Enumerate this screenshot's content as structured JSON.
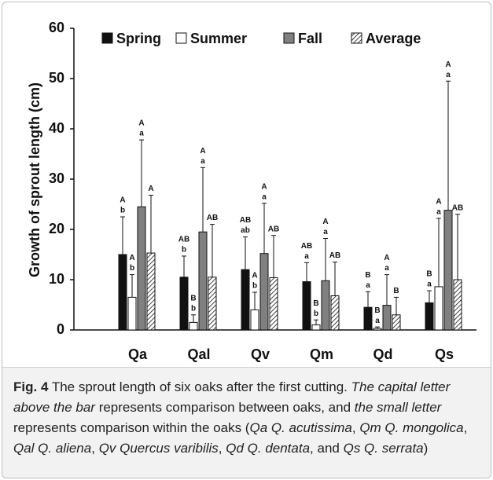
{
  "chart_data": {
    "type": "bar",
    "categories": [
      "Qa",
      "Qal",
      "Qv",
      "Qm",
      "Qd",
      "Qs"
    ],
    "ylabel": "Growth of sprout length (cm)",
    "ylim": [
      0,
      60
    ],
    "yticks": [
      0,
      10,
      20,
      30,
      40,
      50,
      60
    ],
    "legend": "top",
    "series": [
      {
        "name": "Spring",
        "color": "#111111",
        "values": [
          15,
          10.5,
          12,
          9.6,
          4.5,
          5.4
        ],
        "errors": [
          7.5,
          4.2,
          6.5,
          3.8,
          3.1,
          2.4
        ],
        "upper": [
          "A",
          "AB",
          "AB",
          "AB",
          "B",
          "B"
        ],
        "lower": [
          "b",
          "b",
          "ab",
          "a",
          "a",
          "a"
        ]
      },
      {
        "name": "Summer",
        "color": "#ffffff",
        "values": [
          6.5,
          1.5,
          4,
          1,
          0.3,
          8.6
        ],
        "errors": [
          4.5,
          1.5,
          3.5,
          1,
          0.3,
          13.6
        ],
        "upper": [
          "A",
          "B",
          "A",
          "B",
          "B",
          "A"
        ],
        "lower": [
          "b",
          "b",
          "b",
          "b",
          "a",
          "a"
        ]
      },
      {
        "name": "Fall",
        "color": "#808080",
        "values": [
          24.5,
          19.5,
          15.2,
          9.8,
          4.9,
          23.8
        ],
        "errors": [
          13.3,
          12.8,
          10,
          8.4,
          6.1,
          25.7
        ],
        "upper": [
          "A",
          "A",
          "A",
          "A",
          "A",
          "A"
        ],
        "lower": [
          "a",
          "a",
          "a",
          "a",
          "a",
          "a"
        ]
      },
      {
        "name": "Average",
        "color": "hatch",
        "values": [
          15.3,
          10.5,
          10.4,
          6.8,
          3,
          10
        ],
        "errors": [
          11.5,
          10.5,
          8.4,
          6.7,
          3.5,
          13
        ],
        "upper": [
          "A",
          "AB",
          "AB",
          "AB",
          "B",
          "AB"
        ]
      }
    ]
  },
  "caption": {
    "label": "Fig. 4",
    "parts": [
      {
        "text": " The sprout length of six oaks after the first cutting. ",
        "italic": false
      },
      {
        "text": "The capital letter above the bar",
        "italic": true
      },
      {
        "text": " represents comparison between oaks, and ",
        "italic": false
      },
      {
        "text": "the small letter",
        "italic": true
      },
      {
        "text": " represents comparison within the oaks (",
        "italic": false
      },
      {
        "text": "Qa Q. acutissima",
        "italic": true
      },
      {
        "text": ", ",
        "italic": false
      },
      {
        "text": "Qm Q. mongolica",
        "italic": true
      },
      {
        "text": ", ",
        "italic": false
      },
      {
        "text": "Qal Q. aliena",
        "italic": true
      },
      {
        "text": ", ",
        "italic": false
      },
      {
        "text": "Qv Quercus varibilis",
        "italic": true
      },
      {
        "text": ", ",
        "italic": false
      },
      {
        "text": "Qd Q. dentata",
        "italic": true
      },
      {
        "text": ", and ",
        "italic": false
      },
      {
        "text": "Qs Q. serrata",
        "italic": true
      },
      {
        "text": ")",
        "italic": false
      }
    ]
  }
}
